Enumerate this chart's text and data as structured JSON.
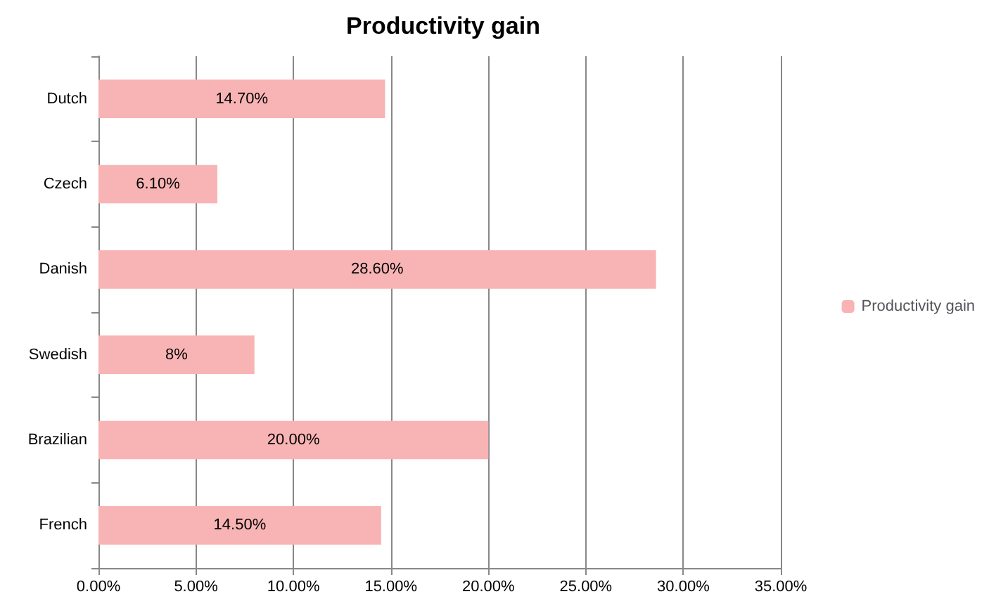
{
  "chart_data": {
    "type": "bar",
    "orientation": "horizontal",
    "title": "Productivity gain",
    "categories": [
      "Dutch",
      "Czech",
      "Danish",
      "Swedish",
      "Brazilian",
      "French"
    ],
    "series": [
      {
        "name": "Productivity gain",
        "color": "#f8b4b4",
        "values": [
          14.7,
          6.1,
          28.6,
          8,
          20,
          14.5
        ],
        "value_labels": [
          "14.70%",
          "6.10%",
          "28.60%",
          "8%",
          "20.00%",
          "14.50%"
        ]
      }
    ],
    "xlim": [
      0,
      35
    ],
    "xticks": [
      {
        "value": 0,
        "label": "0.00%"
      },
      {
        "value": 5,
        "label": "5.00%"
      },
      {
        "value": 10,
        "label": "10.00%"
      },
      {
        "value": 15,
        "label": "15.00%"
      },
      {
        "value": 20,
        "label": "20.00%"
      },
      {
        "value": 25,
        "label": "25.00%"
      },
      {
        "value": 30,
        "label": "30.00%"
      },
      {
        "value": 35,
        "label": "35.00%"
      }
    ],
    "grid": "x",
    "legend": "right"
  }
}
